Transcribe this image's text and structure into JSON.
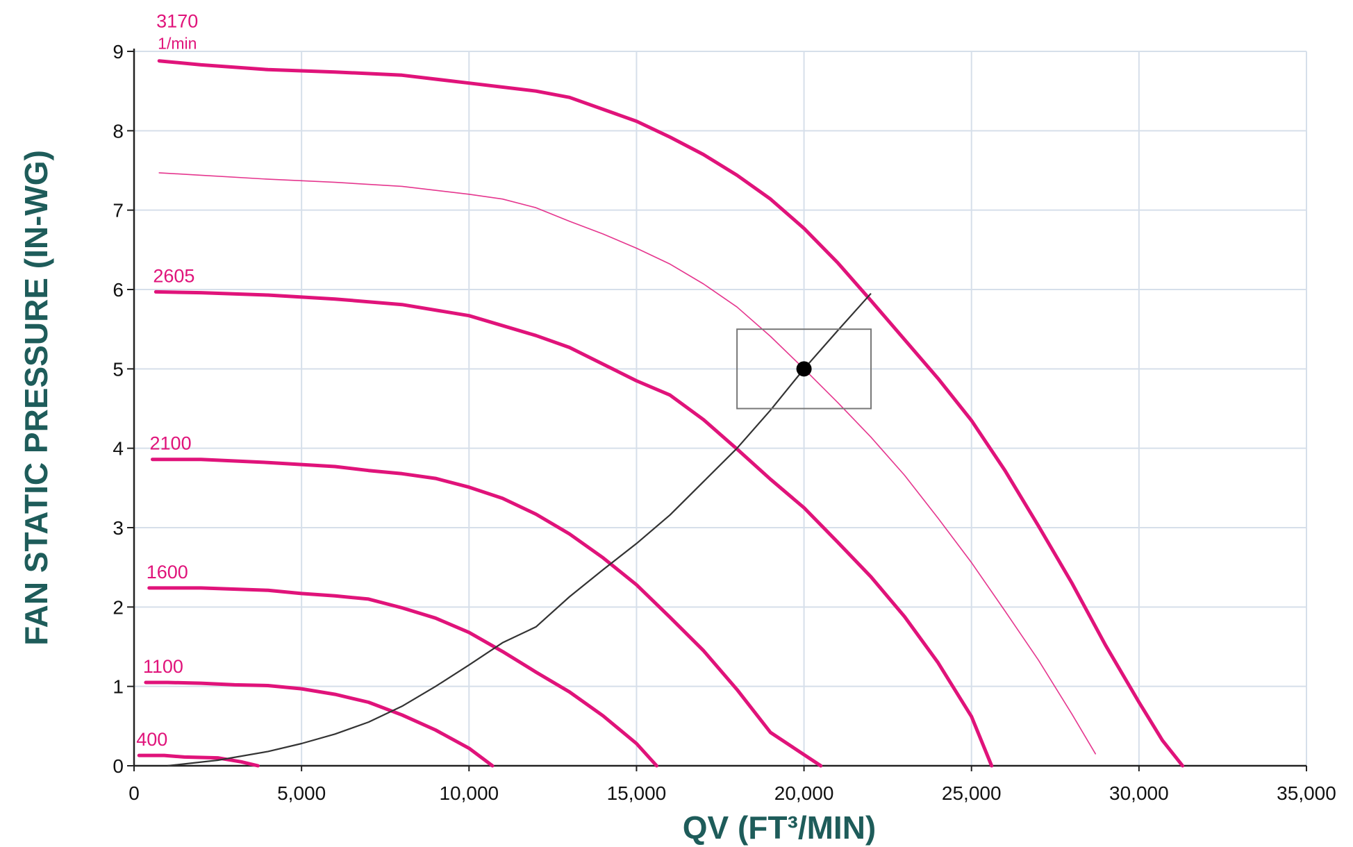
{
  "chart_data": {
    "type": "line",
    "title": "",
    "xlabel": "QV (FT³/MIN)",
    "ylabel": "FAN STATIC PRESSURE (IN-WG)",
    "xlim": [
      0,
      35000
    ],
    "ylim": [
      0,
      9
    ],
    "x_ticks": [
      "0",
      "5,000",
      "10,000",
      "15,000",
      "20,000",
      "25,000",
      "30,000",
      "35,000"
    ],
    "y_ticks": [
      "0",
      "1",
      "2",
      "3",
      "4",
      "5",
      "6",
      "7",
      "8",
      "9"
    ],
    "grid": true,
    "speed_unit_label": "1/min",
    "colors": {
      "fan_curve": "#e0137a",
      "system_curve": "#333333",
      "grid": "#d6dfea",
      "axis_title": "#1e5c5a",
      "box": "#777777"
    },
    "series": [
      {
        "name": "3170",
        "style": "thick",
        "points": [
          [
            750,
            8.88
          ],
          [
            2000,
            8.83
          ],
          [
            4000,
            8.77
          ],
          [
            6000,
            8.74
          ],
          [
            8000,
            8.7
          ],
          [
            10000,
            8.6
          ],
          [
            12000,
            8.5
          ],
          [
            13000,
            8.42
          ],
          [
            15000,
            8.12
          ],
          [
            16000,
            7.92
          ],
          [
            17000,
            7.7
          ],
          [
            18000,
            7.44
          ],
          [
            19000,
            7.14
          ],
          [
            20000,
            6.77
          ],
          [
            21000,
            6.34
          ],
          [
            22000,
            5.86
          ],
          [
            24000,
            4.88
          ],
          [
            25000,
            4.35
          ],
          [
            26000,
            3.72
          ],
          [
            27000,
            3.02
          ],
          [
            28000,
            2.3
          ],
          [
            29000,
            1.52
          ],
          [
            30000,
            0.8
          ],
          [
            30700,
            0.32
          ],
          [
            31300,
            0.0
          ]
        ]
      },
      {
        "name": "",
        "style": "thin",
        "points": [
          [
            750,
            7.47
          ],
          [
            2000,
            7.44
          ],
          [
            4000,
            7.39
          ],
          [
            6000,
            7.35
          ],
          [
            8000,
            7.3
          ],
          [
            10000,
            7.2
          ],
          [
            11000,
            7.14
          ],
          [
            12000,
            7.03
          ],
          [
            13000,
            6.86
          ],
          [
            14000,
            6.7
          ],
          [
            15000,
            6.52
          ],
          [
            16000,
            6.32
          ],
          [
            17000,
            6.07
          ],
          [
            18000,
            5.78
          ],
          [
            19000,
            5.41
          ],
          [
            20000,
            5.0
          ],
          [
            21000,
            4.58
          ],
          [
            22000,
            4.14
          ],
          [
            23000,
            3.66
          ],
          [
            24000,
            3.12
          ],
          [
            25000,
            2.56
          ],
          [
            26000,
            1.95
          ],
          [
            27000,
            1.33
          ],
          [
            28000,
            0.65
          ],
          [
            28700,
            0.15
          ]
        ]
      },
      {
        "name": "2605",
        "style": "thick",
        "points": [
          [
            650,
            5.97
          ],
          [
            2000,
            5.96
          ],
          [
            4000,
            5.93
          ],
          [
            6000,
            5.88
          ],
          [
            8000,
            5.81
          ],
          [
            10000,
            5.67
          ],
          [
            12000,
            5.42
          ],
          [
            13000,
            5.27
          ],
          [
            14000,
            5.06
          ],
          [
            15000,
            4.85
          ],
          [
            16000,
            4.67
          ],
          [
            17000,
            4.36
          ],
          [
            18000,
            3.99
          ],
          [
            19000,
            3.61
          ],
          [
            20000,
            3.25
          ],
          [
            21000,
            2.82
          ],
          [
            22000,
            2.38
          ],
          [
            23000,
            1.88
          ],
          [
            24000,
            1.3
          ],
          [
            25000,
            0.62
          ],
          [
            25600,
            0.0
          ]
        ]
      },
      {
        "name": "2100",
        "style": "thick",
        "points": [
          [
            550,
            3.86
          ],
          [
            2000,
            3.86
          ],
          [
            4000,
            3.82
          ],
          [
            6000,
            3.77
          ],
          [
            7000,
            3.72
          ],
          [
            8000,
            3.68
          ],
          [
            9000,
            3.62
          ],
          [
            10000,
            3.51
          ],
          [
            11000,
            3.37
          ],
          [
            12000,
            3.17
          ],
          [
            13000,
            2.92
          ],
          [
            14000,
            2.62
          ],
          [
            15000,
            2.28
          ],
          [
            16000,
            1.87
          ],
          [
            17000,
            1.45
          ],
          [
            18000,
            0.96
          ],
          [
            19000,
            0.42
          ],
          [
            20500,
            0.0
          ]
        ]
      },
      {
        "name": "1600",
        "style": "thick",
        "points": [
          [
            450,
            2.24
          ],
          [
            2000,
            2.24
          ],
          [
            4000,
            2.21
          ],
          [
            5000,
            2.17
          ],
          [
            6000,
            2.14
          ],
          [
            7000,
            2.1
          ],
          [
            8000,
            1.99
          ],
          [
            9000,
            1.86
          ],
          [
            10000,
            1.68
          ],
          [
            11000,
            1.44
          ],
          [
            12000,
            1.18
          ],
          [
            13000,
            0.93
          ],
          [
            14000,
            0.63
          ],
          [
            15000,
            0.28
          ],
          [
            15600,
            0.0
          ]
        ]
      },
      {
        "name": "1100",
        "style": "thick",
        "points": [
          [
            350,
            1.05
          ],
          [
            1000,
            1.05
          ],
          [
            2000,
            1.04
          ],
          [
            3000,
            1.02
          ],
          [
            4000,
            1.01
          ],
          [
            5000,
            0.97
          ],
          [
            6000,
            0.9
          ],
          [
            7000,
            0.8
          ],
          [
            8000,
            0.64
          ],
          [
            9000,
            0.45
          ],
          [
            10000,
            0.22
          ],
          [
            10700,
            0.0
          ]
        ]
      },
      {
        "name": "400",
        "style": "thick",
        "points": [
          [
            150,
            0.13
          ],
          [
            900,
            0.13
          ],
          [
            1500,
            0.11
          ],
          [
            2500,
            0.1
          ],
          [
            3200,
            0.05
          ],
          [
            3700,
            0.0
          ]
        ]
      }
    ],
    "system_curve": {
      "name": "",
      "points": [
        [
          1000,
          0.0
        ],
        [
          2500,
          0.07
        ],
        [
          4000,
          0.18
        ],
        [
          5000,
          0.28
        ],
        [
          6000,
          0.4
        ],
        [
          7000,
          0.55
        ],
        [
          8000,
          0.75
        ],
        [
          9000,
          1.0
        ],
        [
          10000,
          1.27
        ],
        [
          11000,
          1.55
        ],
        [
          12000,
          1.75
        ],
        [
          13000,
          2.13
        ],
        [
          14000,
          2.47
        ],
        [
          15000,
          2.8
        ],
        [
          16000,
          3.16
        ],
        [
          17000,
          3.58
        ],
        [
          18000,
          4.0
        ],
        [
          19000,
          4.48
        ],
        [
          20000,
          5.0
        ],
        [
          21000,
          5.48
        ],
        [
          22000,
          5.95
        ]
      ]
    },
    "operating_point": {
      "x": 20000,
      "y": 5.0
    },
    "tolerance_box": {
      "x": [
        18000,
        22000
      ],
      "y": [
        4.5,
        5.5
      ]
    }
  }
}
